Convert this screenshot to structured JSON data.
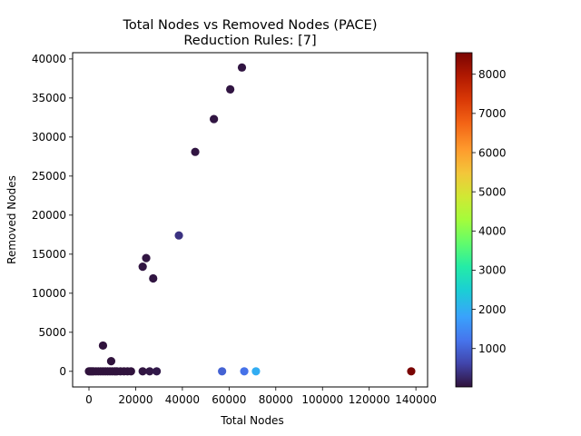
{
  "chart_data": {
    "type": "scatter",
    "title": "Total Nodes vs Removed Nodes (PACE)",
    "subtitle": "Reduction Rules: [7]",
    "xlabel": "Total Nodes",
    "ylabel": "Removed Nodes",
    "xlim": [
      -7000,
      145000
    ],
    "ylim": [
      -2000,
      40800
    ],
    "xticks": [
      0,
      20000,
      40000,
      60000,
      80000,
      100000,
      120000,
      140000
    ],
    "yticks": [
      0,
      5000,
      10000,
      15000,
      20000,
      25000,
      30000,
      35000,
      40000
    ],
    "colorbar": {
      "min": 20,
      "max": 8550,
      "ticks": [
        1000,
        2000,
        3000,
        4000,
        5000,
        6000,
        7000,
        8000
      ],
      "colormap": "turbo"
    },
    "grid": false,
    "legend": "none",
    "points": [
      {
        "x": 0,
        "y": 0,
        "c": 30
      },
      {
        "x": 500,
        "y": 0,
        "c": 30
      },
      {
        "x": 1000,
        "y": 0,
        "c": 30
      },
      {
        "x": 1500,
        "y": 0,
        "c": 30
      },
      {
        "x": 2000,
        "y": 0,
        "c": 30
      },
      {
        "x": 3000,
        "y": 0,
        "c": 30
      },
      {
        "x": 4000,
        "y": 0,
        "c": 30
      },
      {
        "x": 5000,
        "y": 0,
        "c": 30
      },
      {
        "x": 6000,
        "y": 0,
        "c": 30
      },
      {
        "x": 7000,
        "y": 0,
        "c": 30
      },
      {
        "x": 8000,
        "y": 0,
        "c": 30
      },
      {
        "x": 9000,
        "y": 0,
        "c": 30
      },
      {
        "x": 10000,
        "y": 0,
        "c": 30
      },
      {
        "x": 11000,
        "y": 0,
        "c": 30
      },
      {
        "x": 12000,
        "y": 0,
        "c": 30
      },
      {
        "x": 13500,
        "y": 0,
        "c": 30
      },
      {
        "x": 15000,
        "y": 0,
        "c": 30
      },
      {
        "x": 16500,
        "y": 0,
        "c": 30
      },
      {
        "x": 18000,
        "y": 0,
        "c": 30
      },
      {
        "x": 23000,
        "y": 0,
        "c": 60
      },
      {
        "x": 26000,
        "y": 0,
        "c": 80
      },
      {
        "x": 29000,
        "y": 0,
        "c": 100
      },
      {
        "x": 57000,
        "y": 0,
        "c": 1000
      },
      {
        "x": 66500,
        "y": 0,
        "c": 1200
      },
      {
        "x": 71500,
        "y": 0,
        "c": 2000
      },
      {
        "x": 138000,
        "y": 0,
        "c": 8550
      },
      {
        "x": 6000,
        "y": 3300,
        "c": 30
      },
      {
        "x": 9500,
        "y": 1300,
        "c": 30
      },
      {
        "x": 23000,
        "y": 13400,
        "c": 60
      },
      {
        "x": 24500,
        "y": 14500,
        "c": 60
      },
      {
        "x": 27500,
        "y": 11900,
        "c": 60
      },
      {
        "x": 38500,
        "y": 17400,
        "c": 400
      },
      {
        "x": 45500,
        "y": 28100,
        "c": 60
      },
      {
        "x": 53500,
        "y": 32300,
        "c": 60
      },
      {
        "x": 60500,
        "y": 36100,
        "c": 60
      },
      {
        "x": 65500,
        "y": 38900,
        "c": 60
      }
    ]
  }
}
